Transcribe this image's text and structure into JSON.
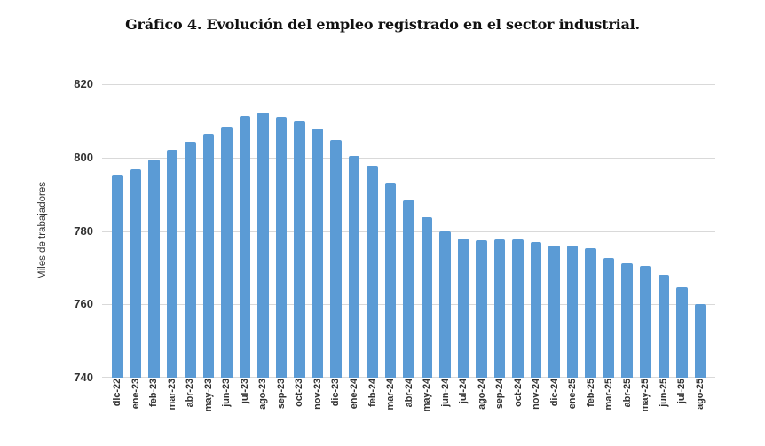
{
  "chart_data": {
    "type": "bar",
    "title": "Gráfico 4. Evolución del empleo registrado en el sector industrial.",
    "xlabel": "",
    "ylabel": "Miles de trabajadores",
    "categories": [
      "dic-22",
      "ene-23",
      "feb-23",
      "mar-23",
      "abr-23",
      "may-23",
      "jun-23",
      "jul-23",
      "ago-23",
      "sep-23",
      "oct-23",
      "nov-23",
      "dic-23",
      "ene-24",
      "feb-24",
      "mar-24",
      "abr-24",
      "may-24",
      "jun-24",
      "jul-24",
      "ago-24",
      "sep-24",
      "oct-24",
      "nov-24",
      "dic-24",
      "ene-25",
      "feb-25",
      "mar-25",
      "abr-25",
      "may-25",
      "jun-25",
      "jul-25",
      "ago-25"
    ],
    "values": [
      795.3,
      796.7,
      799.4,
      802.2,
      804.4,
      806.4,
      808.3,
      811.2,
      812.2,
      811.0,
      809.8,
      808.0,
      804.8,
      800.5,
      797.7,
      793.1,
      788.4,
      783.8,
      780.0,
      778.0,
      777.5,
      777.7,
      777.7,
      776.9,
      776.1,
      776.0,
      775.4,
      772.7,
      771.2,
      770.5,
      768.1,
      764.7,
      760.1
    ],
    "ylim": [
      740,
      820
    ],
    "yticks": [
      740,
      760,
      780,
      800,
      820
    ],
    "grid": true,
    "legend": false,
    "bar_color": "#5b9bd5",
    "grid_color": "#d9d9d9",
    "tick_text_color": "#333333",
    "title_color": "#111111"
  }
}
